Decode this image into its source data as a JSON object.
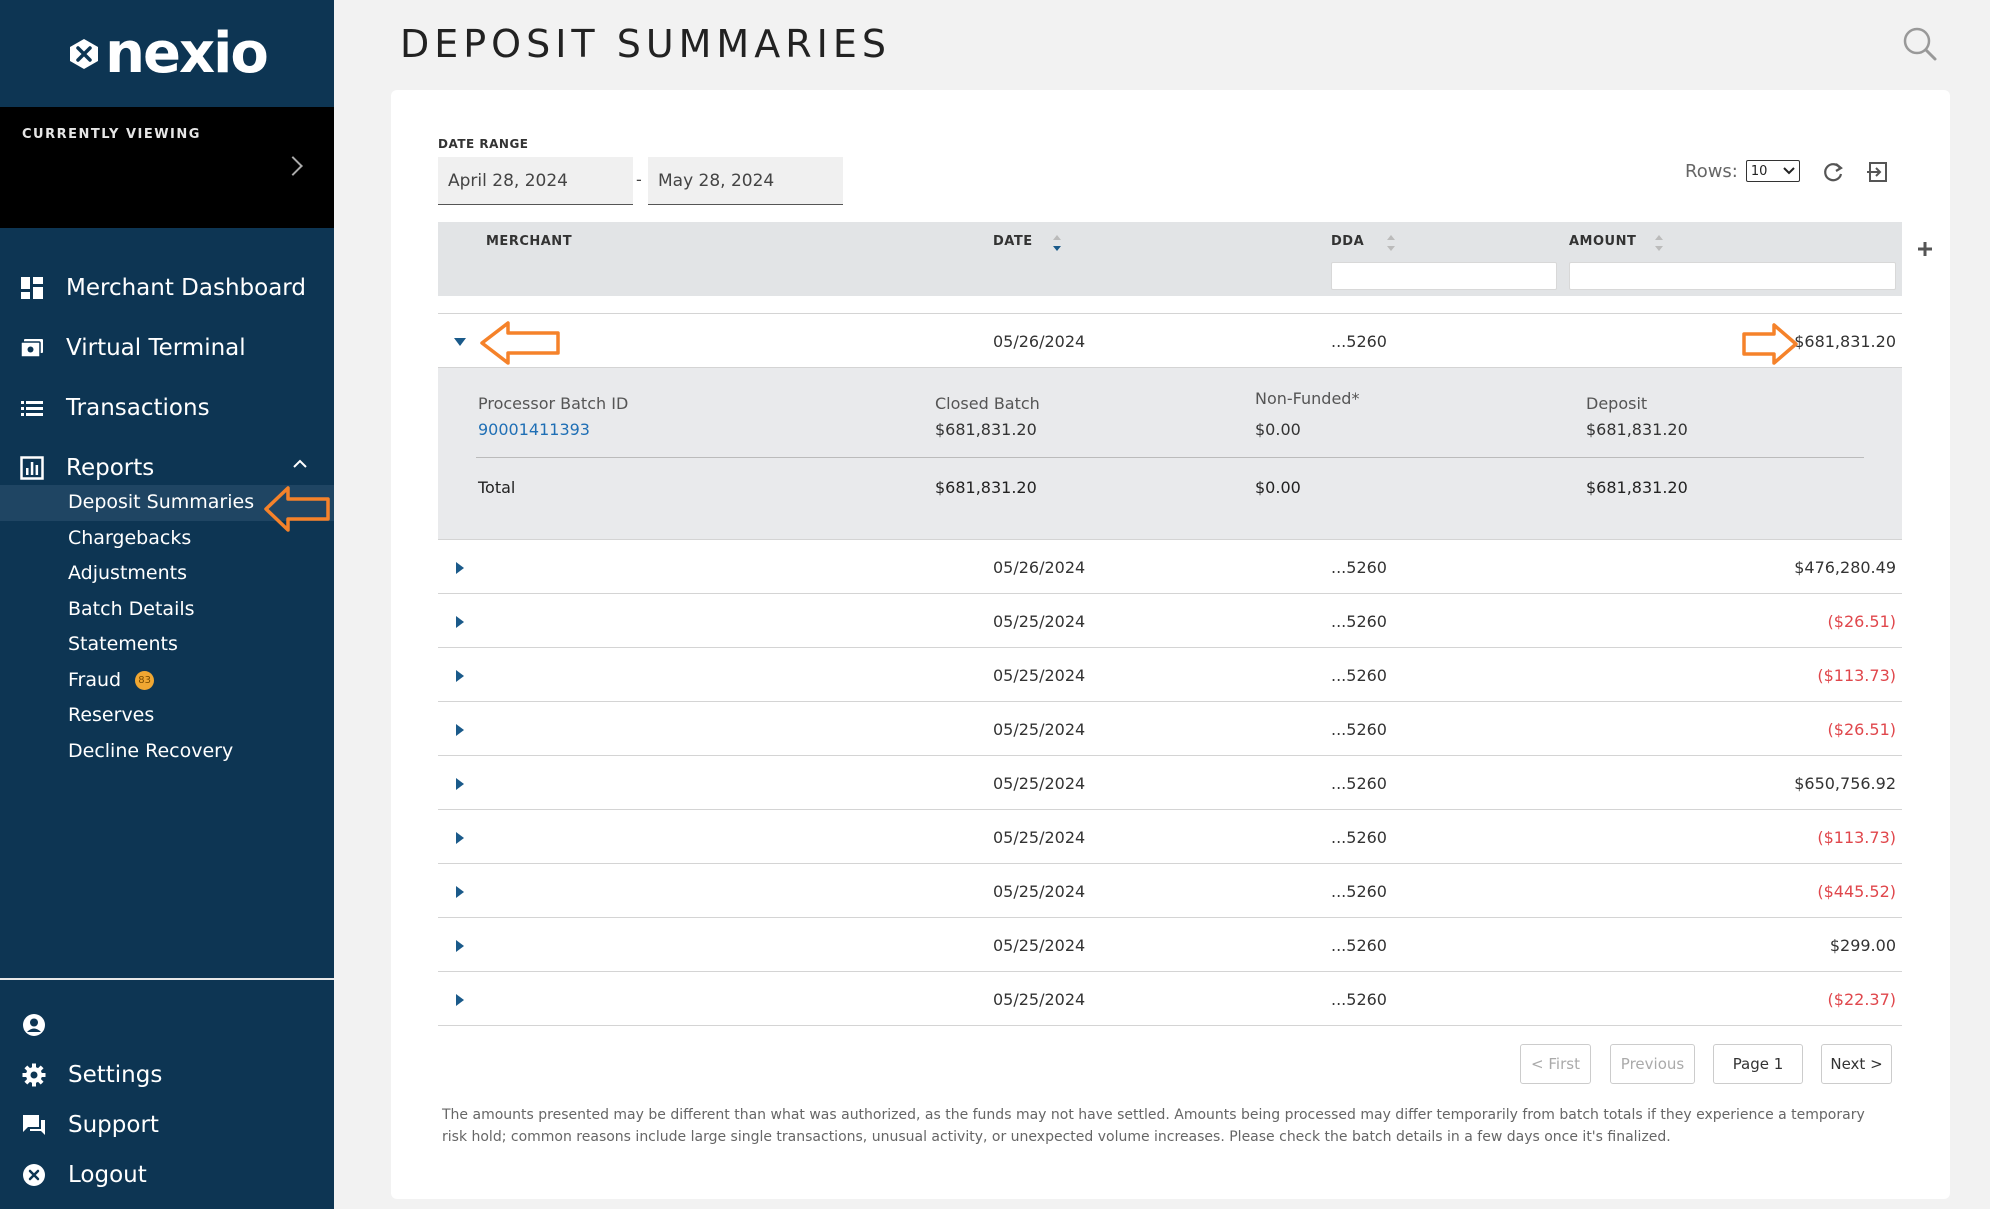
{
  "brand": {
    "name": "nexio"
  },
  "viewing": {
    "label": "CURRENTLY VIEWING"
  },
  "nav": {
    "items": [
      {
        "label": "Merchant Dashboard",
        "icon": "dashboard-icon"
      },
      {
        "label": "Virtual Terminal",
        "icon": "terminal-icon"
      },
      {
        "label": "Transactions",
        "icon": "list-icon"
      },
      {
        "label": "Reports",
        "icon": "chart-icon"
      }
    ],
    "reports_sub": [
      {
        "label": "Deposit Summaries",
        "active": true
      },
      {
        "label": "Chargebacks"
      },
      {
        "label": "Adjustments"
      },
      {
        "label": "Batch Details"
      },
      {
        "label": "Statements"
      },
      {
        "label": "Fraud",
        "badge": "83"
      },
      {
        "label": "Reserves"
      },
      {
        "label": "Decline Recovery"
      }
    ],
    "bottom": [
      {
        "label": "",
        "icon": "user-icon"
      },
      {
        "label": "Settings",
        "icon": "gear-icon"
      },
      {
        "label": "Support",
        "icon": "chat-icon"
      },
      {
        "label": "Logout",
        "icon": "close-circle-icon"
      }
    ]
  },
  "page": {
    "title": "DEPOSIT SUMMARIES"
  },
  "date_range": {
    "label": "DATE RANGE",
    "start": "April 28, 2024",
    "end": "May 28, 2024",
    "separator": "-"
  },
  "rows_ctrl": {
    "label": "Rows:",
    "value": "10"
  },
  "table": {
    "columns": {
      "merchant": "MERCHANT",
      "date": "DATE",
      "dda": "DDA",
      "amount": "AMOUNT"
    },
    "rows": [
      {
        "date": "05/26/2024",
        "dda": "...5260",
        "amount": "$681,831.20",
        "negative": false,
        "expanded": true
      },
      {
        "date": "05/26/2024",
        "dda": "...5260",
        "amount": "$476,280.49",
        "negative": false
      },
      {
        "date": "05/25/2024",
        "dda": "...5260",
        "amount": "($26.51)",
        "negative": true
      },
      {
        "date": "05/25/2024",
        "dda": "...5260",
        "amount": "($113.73)",
        "negative": true
      },
      {
        "date": "05/25/2024",
        "dda": "...5260",
        "amount": "($26.51)",
        "negative": true
      },
      {
        "date": "05/25/2024",
        "dda": "...5260",
        "amount": "$650,756.92",
        "negative": false
      },
      {
        "date": "05/25/2024",
        "dda": "...5260",
        "amount": "($113.73)",
        "negative": true
      },
      {
        "date": "05/25/2024",
        "dda": "...5260",
        "amount": "($445.52)",
        "negative": true
      },
      {
        "date": "05/25/2024",
        "dda": "...5260",
        "amount": "$299.00",
        "negative": false
      },
      {
        "date": "05/25/2024",
        "dda": "...5260",
        "amount": "($22.37)",
        "negative": true
      }
    ]
  },
  "expanded": {
    "batch_id_label": "Processor Batch ID",
    "batch_id": "90001411393",
    "closed_label": "Closed Batch",
    "closed_value": "$681,831.20",
    "nonfunded_label": "Non-Funded*",
    "nonfunded_value": "$0.00",
    "deposit_label": "Deposit",
    "deposit_value": "$681,831.20",
    "total_label": "Total",
    "total_closed": "$681,831.20",
    "total_nonfunded": "$0.00",
    "total_deposit": "$681,831.20"
  },
  "pager": {
    "first": "< First",
    "previous": "Previous",
    "page": "Page  1",
    "next": "Next >"
  },
  "disclaimer": "The amounts presented may be different than what was authorized, as the funds may not have settled. Amounts being processed may differ temporarily from batch totals if they experience a temporary risk hold; common reasons include large single transactions, unusual activity, or unexpected volume increases. Please check the batch details in a few days once it's finalized.",
  "colors": {
    "sidebar": "#0d3553",
    "accent": "#1f6fb5",
    "negative": "#e0474c",
    "annotation": "#f5822a"
  }
}
